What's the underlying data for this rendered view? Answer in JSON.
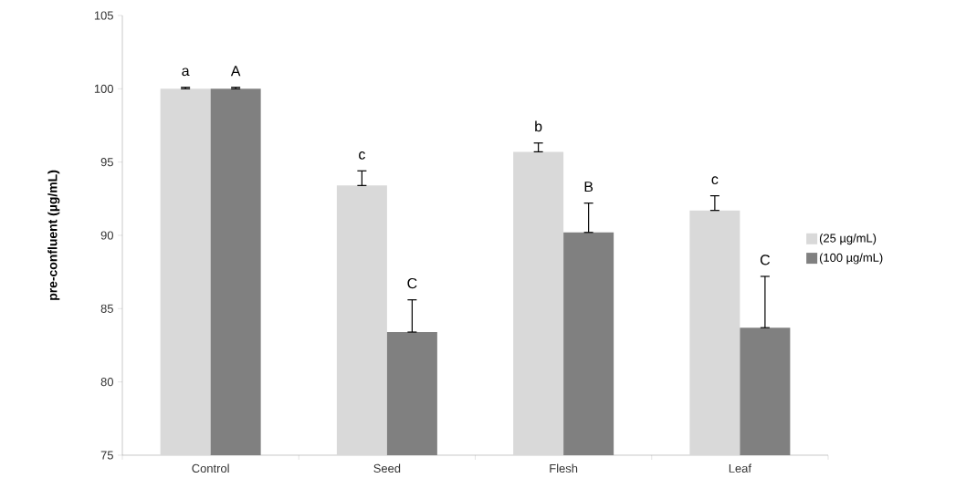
{
  "chart_data": {
    "type": "bar",
    "ylabel": "pre-confluent (µg/mL)",
    "categories": [
      "Control",
      "Seed",
      "Flesh",
      "Leaf"
    ],
    "series": [
      {
        "name": "(25 µg/mL)",
        "color": "#d9d9d9",
        "values": [
          100,
          93.4,
          95.7,
          91.7
        ],
        "errors": [
          [
            100,
            100.1
          ],
          [
            93.4,
            94.4
          ],
          [
            95.7,
            96.3
          ],
          [
            91.7,
            92.7
          ]
        ]
      },
      {
        "name": "(100 µg/mL)",
        "color": "#808080",
        "values": [
          100,
          83.4,
          90.2,
          83.7
        ],
        "errors": [
          [
            100,
            100.1
          ],
          [
            83.4,
            85.6
          ],
          [
            90.2,
            92.2
          ],
          [
            83.7,
            87.2
          ]
        ]
      }
    ],
    "ylim": [
      75,
      105
    ],
    "yticks": [
      75,
      80,
      85,
      90,
      95,
      100,
      105
    ],
    "grid": false,
    "legend": "right",
    "annotations": [
      {
        "text": "a",
        "x": "Control",
        "y": 100.1
      },
      {
        "text": "A",
        "x": "Control",
        "y": 100.1
      },
      {
        "text": "c",
        "x": "Seed",
        "y": 93.4
      },
      {
        "text": "C",
        "x": "Seed",
        "y": 85.6
      },
      {
        "text": "b",
        "x": "Flesh",
        "y": 95.7
      },
      {
        "text": "B",
        "x": "Flesh",
        "y": 92.2
      },
      {
        "text": "c",
        "x": "Leaf",
        "y": 91.7
      },
      {
        "text": "C",
        "x": "Leaf",
        "y": 87.2
      }
    ]
  }
}
